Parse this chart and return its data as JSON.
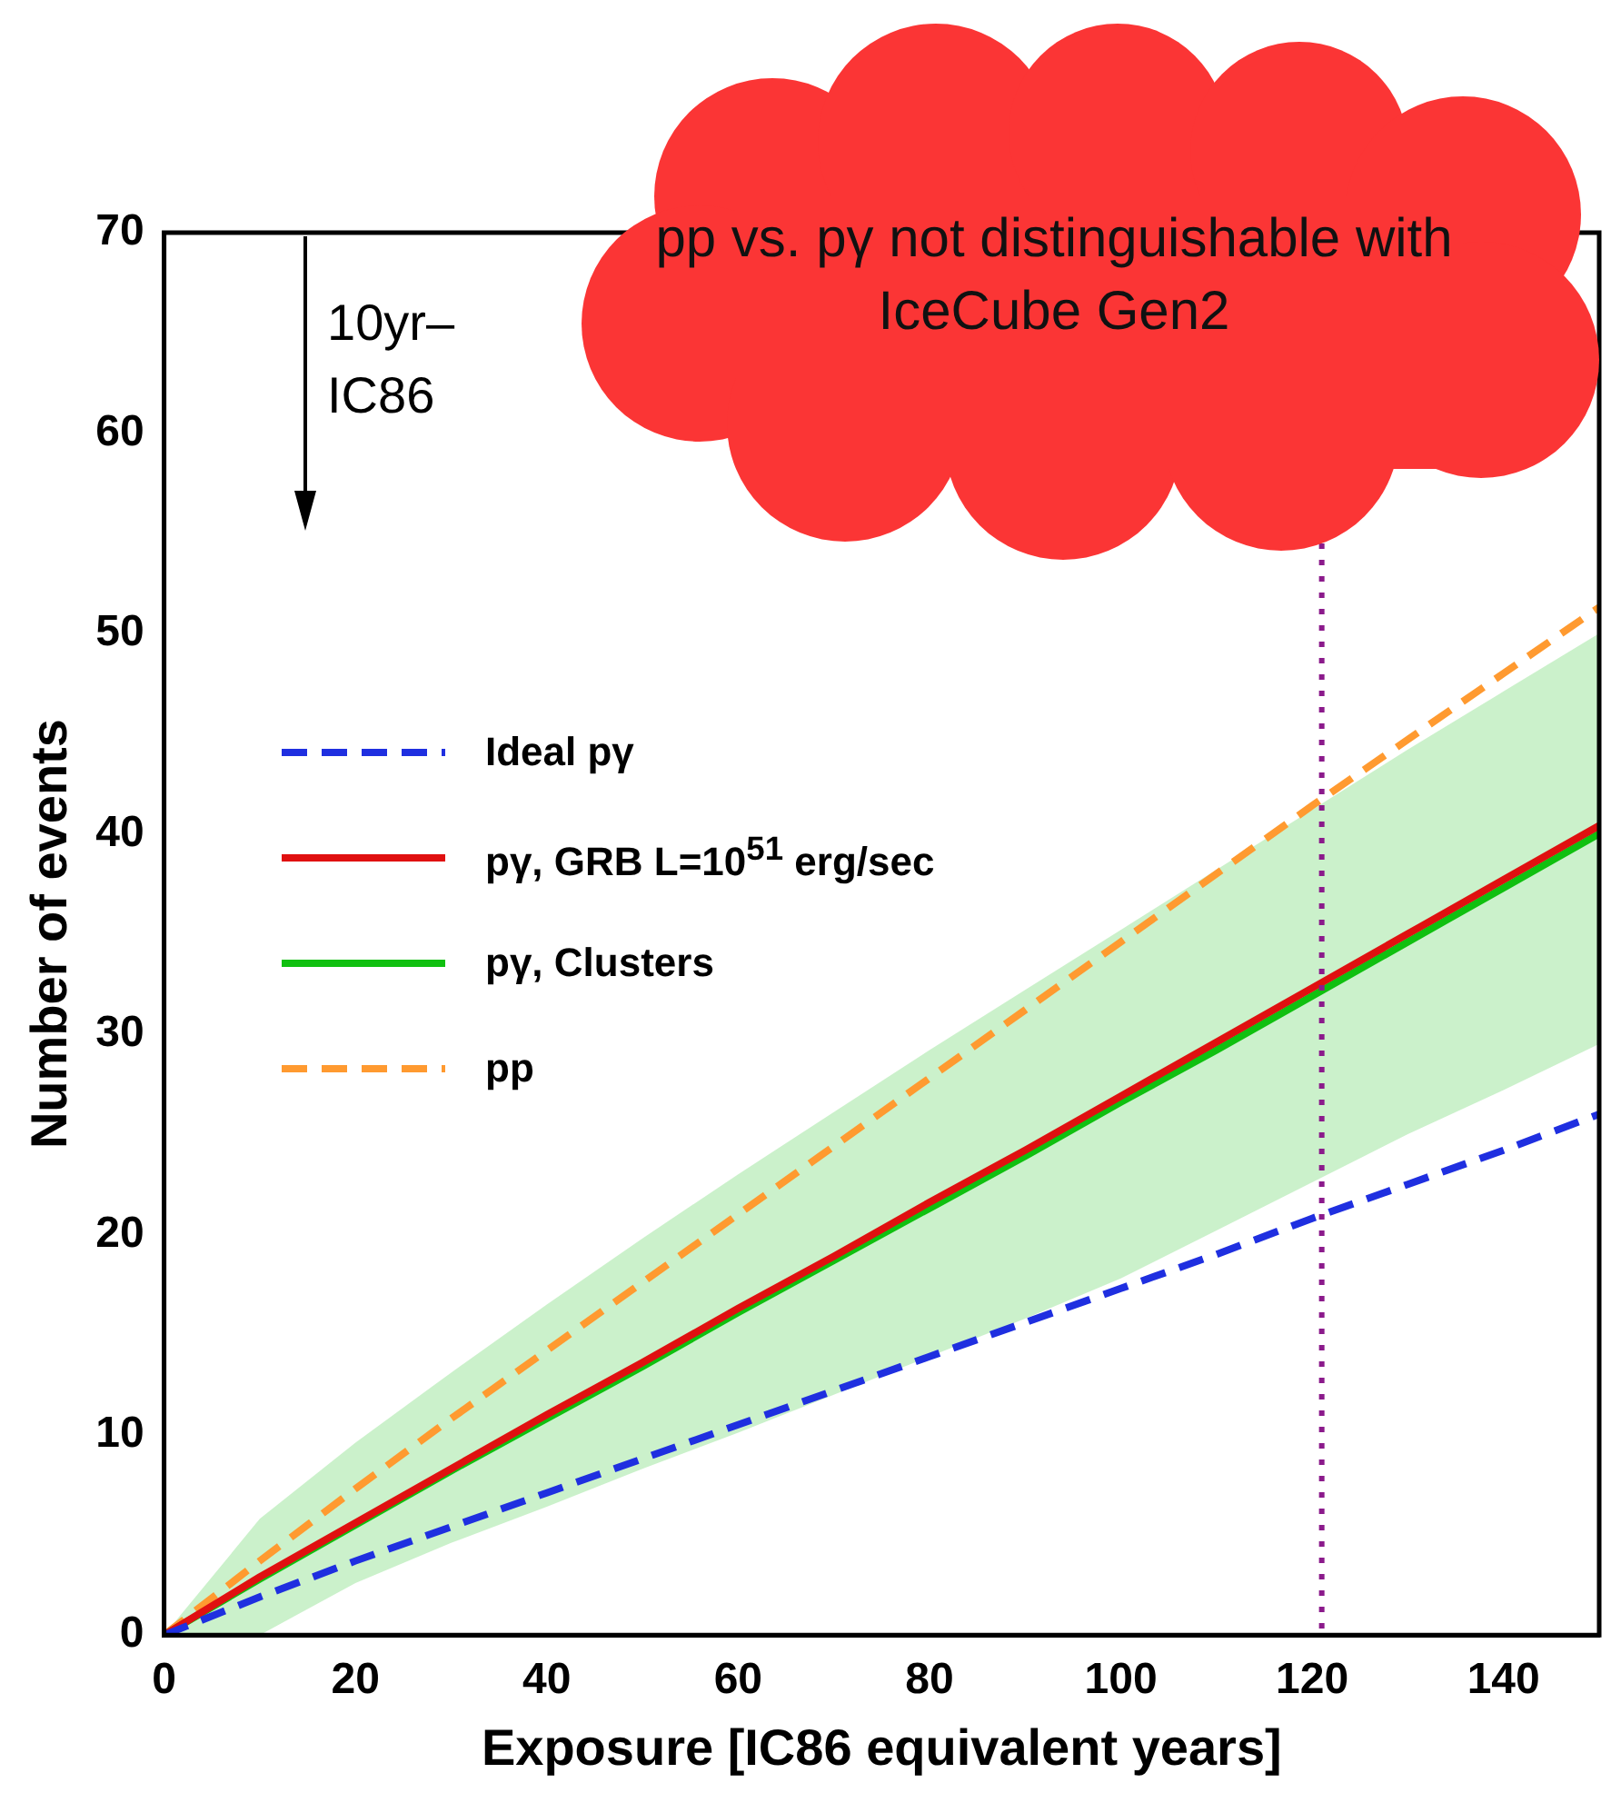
{
  "chart_data": {
    "type": "line",
    "xlabel": "Exposure [IC86 equivalent years]",
    "ylabel": "Number of events",
    "x": [
      0,
      10,
      20,
      30,
      40,
      50,
      60,
      70,
      80,
      90,
      100,
      110,
      120,
      130,
      140,
      150
    ],
    "xlim": [
      0,
      150
    ],
    "xticks": [
      0,
      20,
      40,
      60,
      80,
      100,
      120,
      140
    ],
    "ylim": [
      0,
      70
    ],
    "yticks": [
      0,
      10,
      20,
      30,
      40,
      50,
      60,
      70
    ],
    "grid": false,
    "legend": "left",
    "marker": "none",
    "series": [
      {
        "name": "Ideal pγ",
        "color": "#1f2fe0",
        "line_style": "dashed",
        "values": [
          0,
          1.9,
          3.7,
          5.4,
          7.1,
          8.8,
          10.5,
          12.2,
          13.9,
          15.6,
          17.3,
          19.0,
          20.8,
          22.5,
          24.2,
          26.0
        ]
      },
      {
        "name": "pγ, GRB L=10$^{51}$ erg/sec",
        "color": "#e01010",
        "line_style": "solid",
        "values": [
          0,
          2.9,
          5.6,
          8.3,
          11.0,
          13.6,
          16.3,
          18.9,
          21.6,
          24.2,
          26.9,
          29.6,
          32.3,
          35.0,
          37.7,
          40.4
        ]
      },
      {
        "name": "pγ, Clusters",
        "color": "#10c010",
        "line_style": "solid",
        "values": [
          0,
          2.8,
          5.5,
          8.2,
          10.8,
          13.4,
          16.1,
          18.7,
          21.3,
          23.9,
          26.6,
          29.2,
          31.9,
          34.6,
          37.3,
          40.0
        ],
        "lower": [
          0,
          0,
          2.6,
          4.6,
          6.4,
          8.3,
          10.1,
          12.0,
          13.9,
          15.8,
          17.8,
          20.2,
          22.6,
          25.0,
          27.2,
          29.5
        ],
        "upper": [
          0,
          5.8,
          9.6,
          13.1,
          16.5,
          19.8,
          23.0,
          26.1,
          29.2,
          32.2,
          35.2,
          38.2,
          41.2,
          44.2,
          47.1,
          50.0
        ]
      },
      {
        "name": "pp",
        "color": "#ff9a30",
        "line_style": "dashed",
        "values": [
          0,
          3.7,
          7.3,
          10.8,
          14.2,
          17.6,
          21.0,
          24.4,
          27.8,
          31.2,
          34.6,
          38.0,
          41.4,
          44.7,
          48.0,
          51.3
        ]
      }
    ],
    "ref_lines": [
      {
        "axis": "x",
        "value": 121,
        "color": "#8b1a8b",
        "line_style": "dotted"
      }
    ],
    "annotations": [
      "10yr–\nIC86",
      "pp vs. pγ not distinguishable with IceCube Gen2"
    ]
  }
}
